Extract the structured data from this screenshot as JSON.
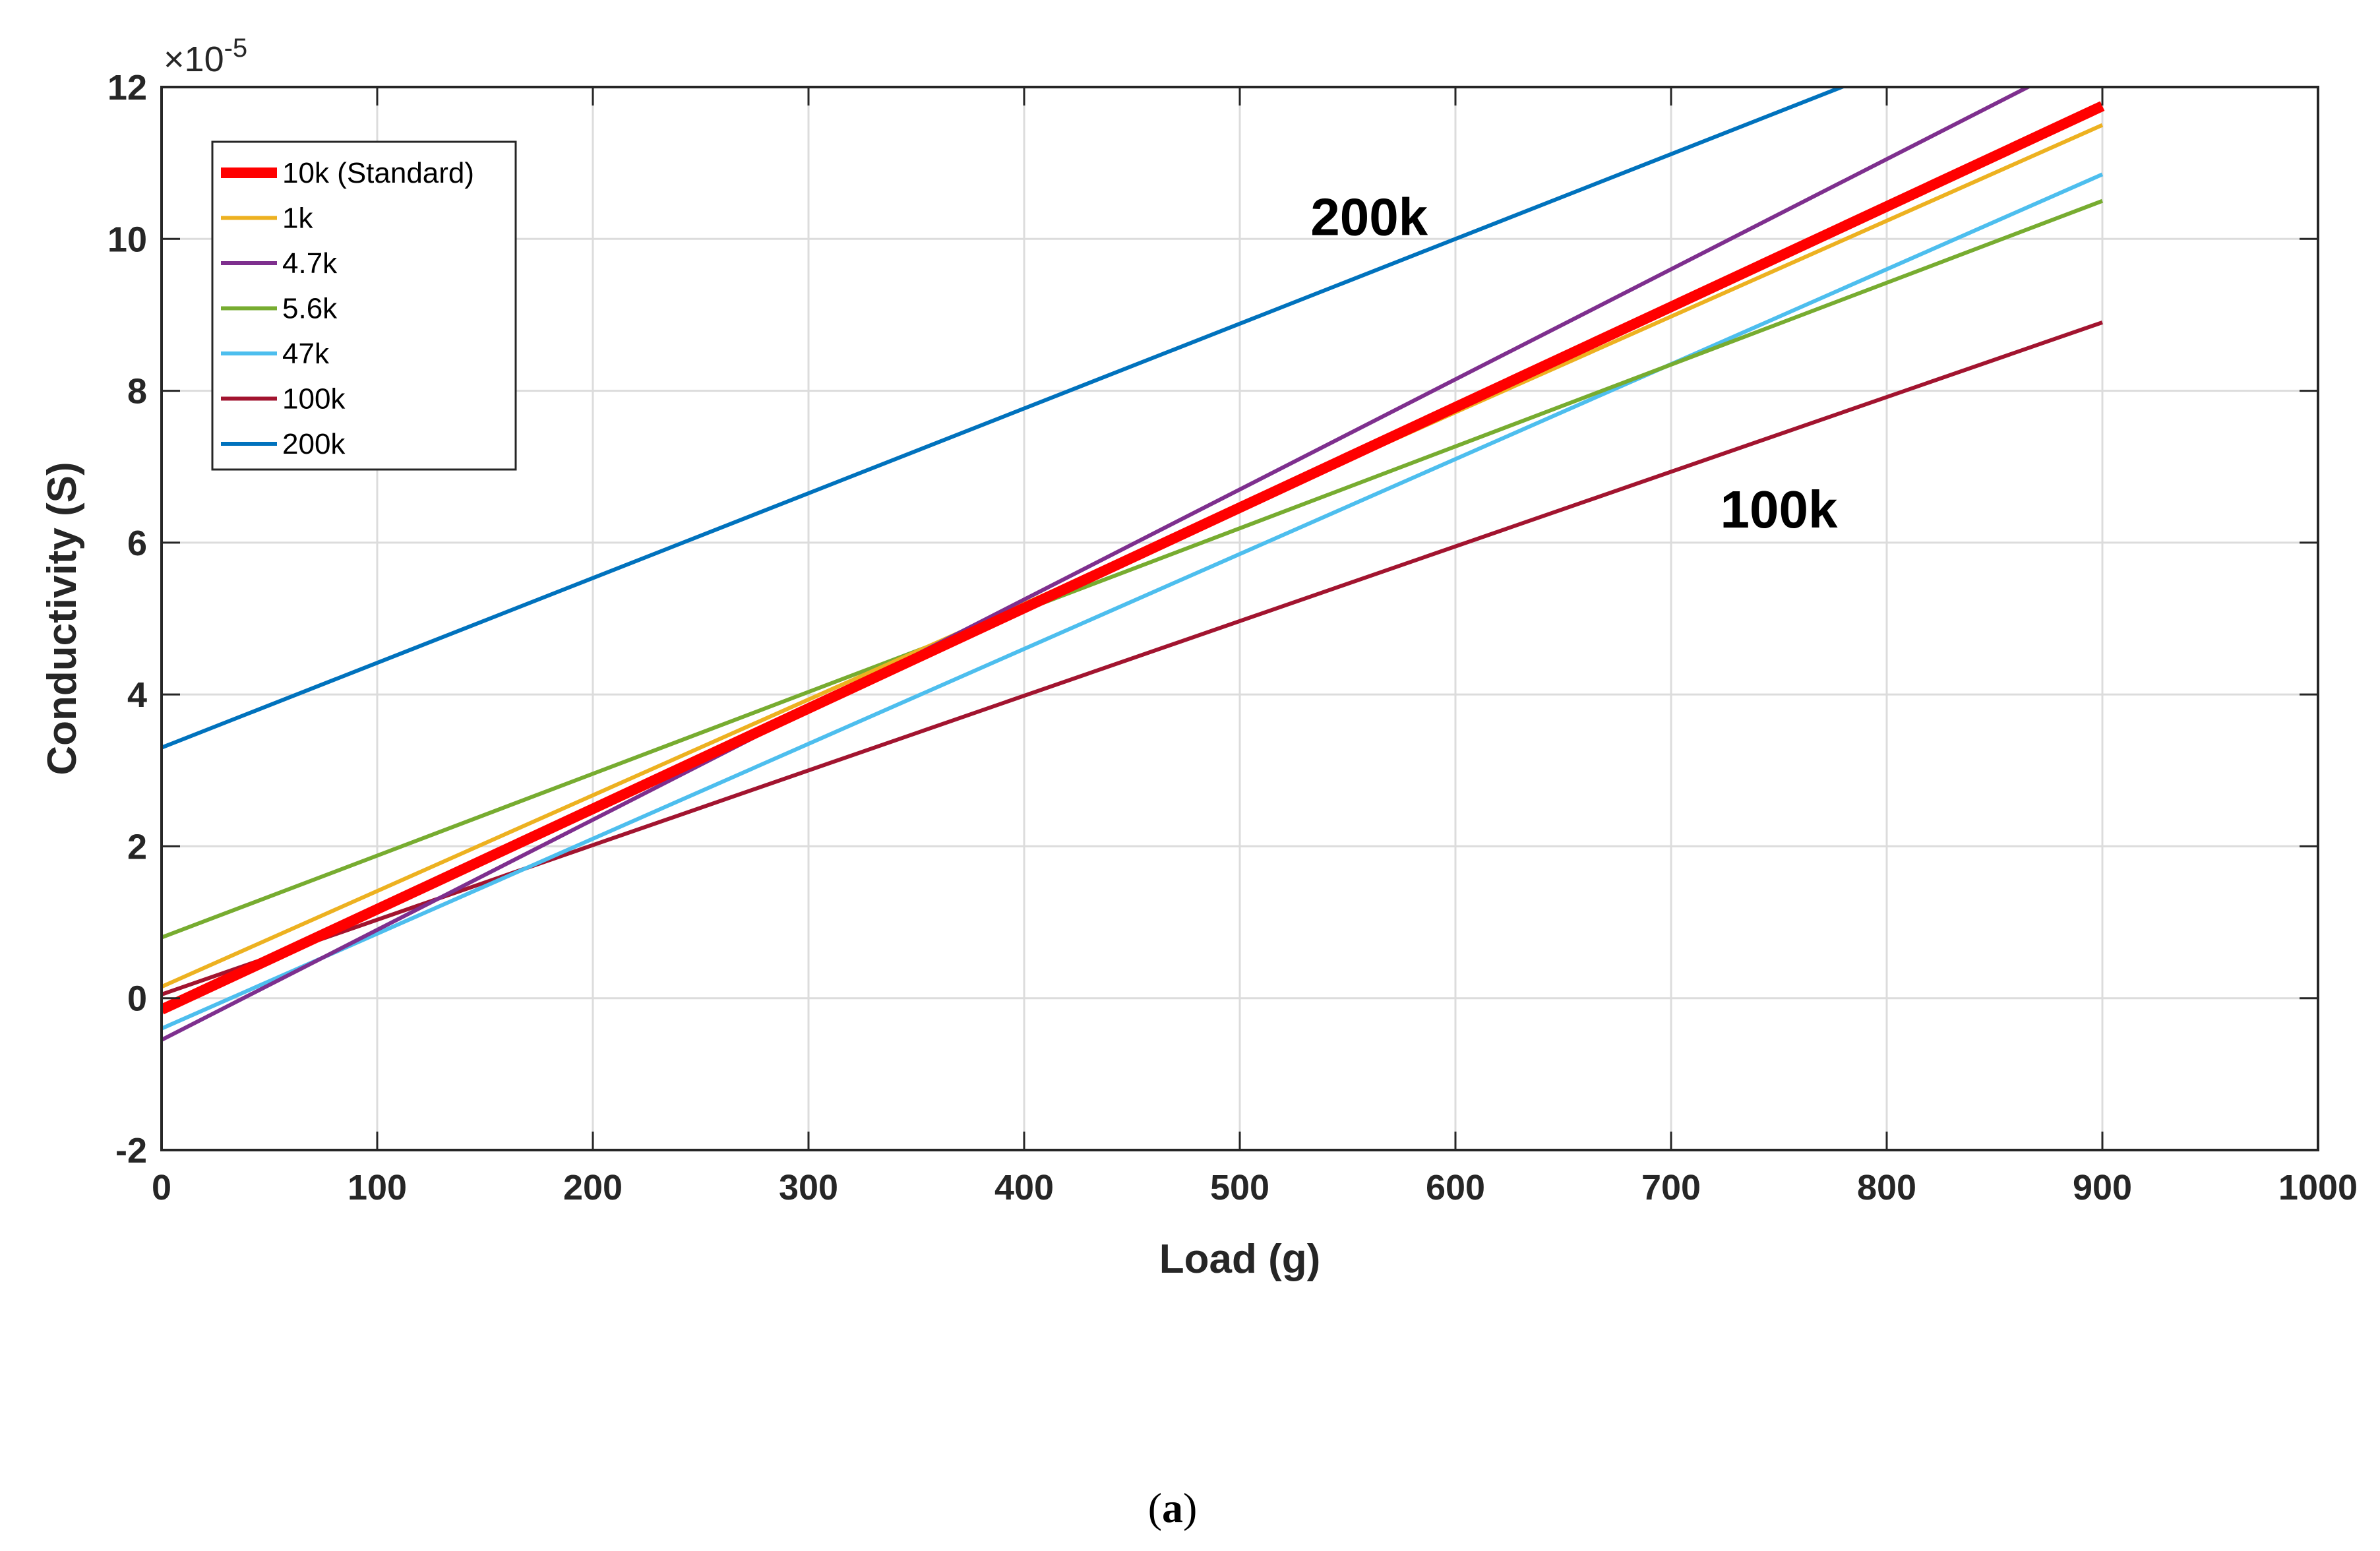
{
  "chart_data": {
    "type": "line",
    "title": "",
    "xlabel": "Load (g)",
    "ylabel": "Conductivity (S)",
    "y_exponent_label": "×10",
    "y_exponent_power": "-5",
    "xlim": [
      0,
      1000
    ],
    "ylim": [
      -2,
      12
    ],
    "xticks": [
      "0",
      "100",
      "200",
      "300",
      "400",
      "500",
      "600",
      "700",
      "800",
      "900",
      "1000"
    ],
    "yticks": [
      "-2",
      "0",
      "2",
      "4",
      "6",
      "8",
      "10",
      "12"
    ],
    "grid": true,
    "legend_position": "top-left",
    "series": [
      {
        "name": "10k (Standard)",
        "color": "#FF0000",
        "bold": true,
        "x": [
          0,
          900
        ],
        "y": [
          -0.15,
          11.75
        ]
      },
      {
        "name": "1k",
        "color": "#EDB120",
        "x": [
          0,
          900
        ],
        "y": [
          0.15,
          11.5
        ]
      },
      {
        "name": "4.7k",
        "color": "#7E2F8E",
        "x": [
          0,
          900
        ],
        "y": [
          -0.55,
          12.5
        ]
      },
      {
        "name": "5.6k",
        "color": "#77AC30",
        "x": [
          0,
          900
        ],
        "y": [
          0.8,
          10.5
        ]
      },
      {
        "name": "47k",
        "color": "#4DBEEE",
        "x": [
          0,
          900
        ],
        "y": [
          -0.4,
          10.85
        ]
      },
      {
        "name": "100k",
        "color": "#A2142F",
        "x": [
          0,
          900
        ],
        "y": [
          0.05,
          8.9
        ]
      },
      {
        "name": "200k",
        "color": "#0072BD",
        "x": [
          0,
          900
        ],
        "y": [
          3.3,
          13.35
        ]
      }
    ],
    "annotations": [
      {
        "text": "200k",
        "x": 560,
        "y": 10.05
      },
      {
        "text": "100k",
        "x": 750,
        "y": 6.2
      }
    ]
  },
  "caption": {
    "open": "(",
    "letter": "a",
    "close": ")"
  }
}
